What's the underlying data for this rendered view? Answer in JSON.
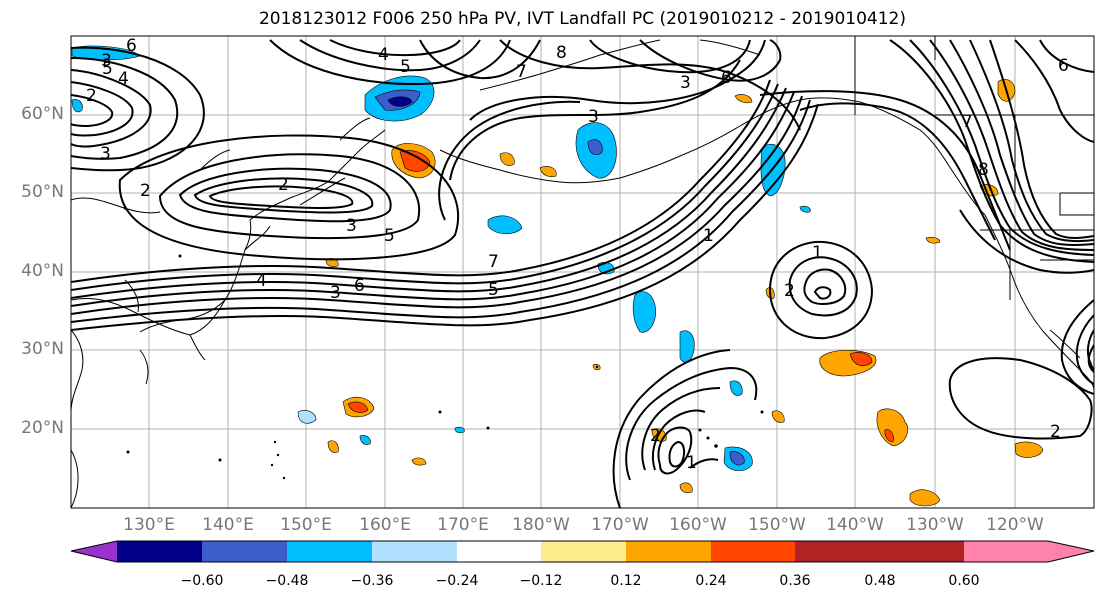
{
  "title": "2018123012 F006 250 hPa PV, IVT Landfall PC (2019010212 - 2019010412)",
  "lat_labels": [
    "60°N",
    "50°N",
    "40°N",
    "30°N",
    "20°N"
  ],
  "lon_labels": [
    "130°E",
    "140°E",
    "150°E",
    "160°E",
    "170°E",
    "180°W",
    "170°W",
    "160°W",
    "150°W",
    "140°W",
    "130°W",
    "120°W"
  ],
  "colorbar": {
    "ticks": [
      "−0.60",
      "−0.48",
      "−0.36",
      "−0.24",
      "−0.12",
      "0.12",
      "0.24",
      "0.36",
      "0.48",
      "0.60"
    ],
    "colors": [
      "#9932CC",
      "#00008B",
      "#3A5FCD",
      "#00BFFF",
      "#B0E2FF",
      "#FFFFFF",
      "#FFEC8B",
      "#FFA500",
      "#FF4500",
      "#B22222",
      "#FF82AB"
    ]
  },
  "contour_labels": [
    "6",
    "5",
    "4",
    "2",
    "3",
    "4",
    "5",
    "7",
    "8",
    "6",
    "3",
    "2",
    "3",
    "4",
    "5",
    "6",
    "7",
    "5",
    "3",
    "1",
    "1",
    "2",
    "3",
    "2",
    "1",
    "2",
    "6",
    "7",
    "8",
    "3",
    "2"
  ]
}
